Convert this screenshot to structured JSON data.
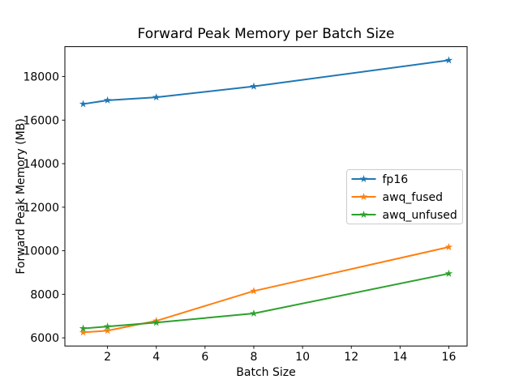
{
  "chart_data": {
    "type": "line",
    "title": "Forward Peak Memory per Batch Size",
    "xlabel": "Batch Size",
    "ylabel": "Forward Peak Memory (MB)",
    "x": [
      1,
      2,
      4,
      8,
      16
    ],
    "series": [
      {
        "name": "fp16",
        "color": "#1f77b4",
        "values": [
          16740,
          16910,
          17050,
          17550,
          18750
        ]
      },
      {
        "name": "awq_fused",
        "color": "#ff7f0e",
        "values": [
          6250,
          6330,
          6780,
          8150,
          10170
        ]
      },
      {
        "name": "awq_unfused",
        "color": "#2ca02c",
        "values": [
          6430,
          6520,
          6700,
          7120,
          8950
        ]
      }
    ],
    "marker": "star",
    "xlim": [
      0.25,
      16.75
    ],
    "ylim": [
      5625,
      19375
    ],
    "xticks": [
      2,
      4,
      6,
      8,
      10,
      12,
      14,
      16
    ],
    "yticks": [
      6000,
      8000,
      10000,
      12000,
      14000,
      16000,
      18000
    ],
    "grid": false,
    "legend": {
      "position": "center right",
      "entries": [
        "fp16",
        "awq_fused",
        "awq_unfused"
      ]
    },
    "background_color": "#ffffff",
    "spine_color": "#000000",
    "text_color": "#000000"
  }
}
